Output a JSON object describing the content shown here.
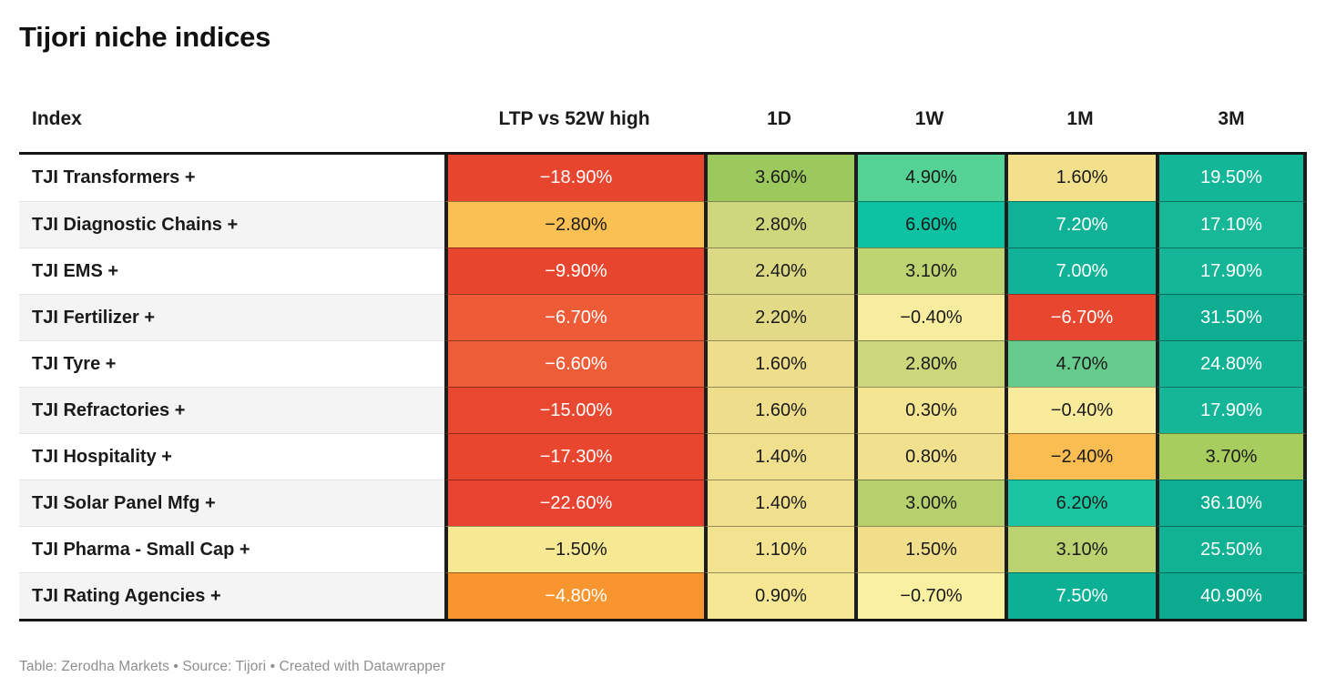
{
  "title": "Tijori niche indices",
  "header": {
    "columns": [
      "Index",
      "LTP vs 52W high",
      "1D",
      "1W",
      "1M",
      "3M"
    ]
  },
  "table": {
    "rows": [
      {
        "name": "TJI Transformers +",
        "cells": [
          {
            "text": "−18.90%",
            "bg": "#e8452f",
            "fg": "#ffffff"
          },
          {
            "text": "3.60%",
            "bg": "#9cc95e",
            "fg": "#1a1a1a"
          },
          {
            "text": "4.90%",
            "bg": "#55d295",
            "fg": "#1a1a1a"
          },
          {
            "text": "1.60%",
            "bg": "#f2e08c",
            "fg": "#1a1a1a"
          },
          {
            "text": "19.50%",
            "bg": "#14b698",
            "fg": "#ffffff"
          }
        ]
      },
      {
        "name": "TJI Diagnostic Chains +",
        "cells": [
          {
            "text": "−2.80%",
            "bg": "#fbc053",
            "fg": "#1a1a1a"
          },
          {
            "text": "2.80%",
            "bg": "#cfd77d",
            "fg": "#1a1a1a"
          },
          {
            "text": "6.60%",
            "bg": "#0cc2a2",
            "fg": "#1a1a1a"
          },
          {
            "text": "7.20%",
            "bg": "#0fb296",
            "fg": "#ffffff"
          },
          {
            "text": "17.10%",
            "bg": "#17b898",
            "fg": "#ffffff"
          }
        ]
      },
      {
        "name": "TJI EMS +",
        "cells": [
          {
            "text": "−9.90%",
            "bg": "#e8452f",
            "fg": "#ffffff"
          },
          {
            "text": "2.40%",
            "bg": "#dcd984",
            "fg": "#1a1a1a"
          },
          {
            "text": "3.10%",
            "bg": "#bed472",
            "fg": "#1a1a1a"
          },
          {
            "text": "7.00%",
            "bg": "#10b397",
            "fg": "#ffffff"
          },
          {
            "text": "17.90%",
            "bg": "#15b697",
            "fg": "#ffffff"
          }
        ]
      },
      {
        "name": "TJI Fertilizer +",
        "cells": [
          {
            "text": "−6.70%",
            "bg": "#ed5b37",
            "fg": "#ffffff"
          },
          {
            "text": "2.20%",
            "bg": "#e2da87",
            "fg": "#1a1a1a"
          },
          {
            "text": "−0.40%",
            "bg": "#f8ed9e",
            "fg": "#1a1a1a"
          },
          {
            "text": "−6.70%",
            "bg": "#e8472f",
            "fg": "#ffffff"
          },
          {
            "text": "31.50%",
            "bg": "#0fae92",
            "fg": "#ffffff"
          }
        ]
      },
      {
        "name": "TJI Tyre +",
        "cells": [
          {
            "text": "−6.60%",
            "bg": "#ed5d38",
            "fg": "#ffffff"
          },
          {
            "text": "1.60%",
            "bg": "#eedd8b",
            "fg": "#1a1a1a"
          },
          {
            "text": "2.80%",
            "bg": "#cbd77b",
            "fg": "#1a1a1a"
          },
          {
            "text": "4.70%",
            "bg": "#66cb8d",
            "fg": "#1a1a1a"
          },
          {
            "text": "24.80%",
            "bg": "#12b295",
            "fg": "#ffffff"
          }
        ]
      },
      {
        "name": "TJI Refractories +",
        "cells": [
          {
            "text": "−15.00%",
            "bg": "#e8482f",
            "fg": "#ffffff"
          },
          {
            "text": "1.60%",
            "bg": "#eedd8b",
            "fg": "#1a1a1a"
          },
          {
            "text": "0.30%",
            "bg": "#f3e591",
            "fg": "#1a1a1a"
          },
          {
            "text": "−0.40%",
            "bg": "#f8ec9c",
            "fg": "#1a1a1a"
          },
          {
            "text": "17.90%",
            "bg": "#15b697",
            "fg": "#ffffff"
          }
        ]
      },
      {
        "name": "TJI Hospitality +",
        "cells": [
          {
            "text": "−17.30%",
            "bg": "#e8462f",
            "fg": "#ffffff"
          },
          {
            "text": "1.40%",
            "bg": "#f0df8d",
            "fg": "#1a1a1a"
          },
          {
            "text": "0.80%",
            "bg": "#f1e18e",
            "fg": "#1a1a1a"
          },
          {
            "text": "−2.40%",
            "bg": "#fabd52",
            "fg": "#1a1a1a"
          },
          {
            "text": "3.70%",
            "bg": "#a8cd5f",
            "fg": "#1a1a1a"
          }
        ]
      },
      {
        "name": "TJI Solar Panel Mfg +",
        "cells": [
          {
            "text": "−22.60%",
            "bg": "#e84330",
            "fg": "#ffffff"
          },
          {
            "text": "1.40%",
            "bg": "#f0df8d",
            "fg": "#1a1a1a"
          },
          {
            "text": "3.00%",
            "bg": "#b6d06e",
            "fg": "#1a1a1a"
          },
          {
            "text": "6.20%",
            "bg": "#1cc5a1",
            "fg": "#1a1a1a"
          },
          {
            "text": "36.10%",
            "bg": "#0dae91",
            "fg": "#ffffff"
          }
        ]
      },
      {
        "name": "TJI Pharma - Small Cap +",
        "cells": [
          {
            "text": "−1.50%",
            "bg": "#f7e893",
            "fg": "#1a1a1a"
          },
          {
            "text": "1.10%",
            "bg": "#f3e290",
            "fg": "#1a1a1a"
          },
          {
            "text": "1.50%",
            "bg": "#f0de8b",
            "fg": "#1a1a1a"
          },
          {
            "text": "3.10%",
            "bg": "#bbd270",
            "fg": "#1a1a1a"
          },
          {
            "text": "25.50%",
            "bg": "#11b194",
            "fg": "#ffffff"
          }
        ]
      },
      {
        "name": "TJI Rating Agencies +",
        "cells": [
          {
            "text": "−4.80%",
            "bg": "#f8952f",
            "fg": "#ffffff"
          },
          {
            "text": "0.90%",
            "bg": "#f5e794",
            "fg": "#1a1a1a"
          },
          {
            "text": "−0.70%",
            "bg": "#f9f0a2",
            "fg": "#1a1a1a"
          },
          {
            "text": "7.50%",
            "bg": "#0cb195",
            "fg": "#ffffff"
          },
          {
            "text": "40.90%",
            "bg": "#0cab8f",
            "fg": "#ffffff"
          }
        ]
      }
    ]
  },
  "footer": "Table: Zerodha Markets • Source: Tijori • Created with Datawrapper",
  "chart_data": {
    "type": "heatmap",
    "title": "Tijori niche indices",
    "columns": [
      "Index",
      "LTP vs 52W high",
      "1D",
      "1W",
      "1M",
      "3M"
    ],
    "units": "percent",
    "color_scale": "red-yellow-green diverging",
    "rows": [
      {
        "index": "TJI Transformers +",
        "ltp_vs_52w_high": -18.9,
        "d1": 3.6,
        "w1": 4.9,
        "m1": 1.6,
        "m3": 19.5
      },
      {
        "index": "TJI Diagnostic Chains +",
        "ltp_vs_52w_high": -2.8,
        "d1": 2.8,
        "w1": 6.6,
        "m1": 7.2,
        "m3": 17.1
      },
      {
        "index": "TJI EMS +",
        "ltp_vs_52w_high": -9.9,
        "d1": 2.4,
        "w1": 3.1,
        "m1": 7.0,
        "m3": 17.9
      },
      {
        "index": "TJI Fertilizer +",
        "ltp_vs_52w_high": -6.7,
        "d1": 2.2,
        "w1": -0.4,
        "m1": -6.7,
        "m3": 31.5
      },
      {
        "index": "TJI Tyre +",
        "ltp_vs_52w_high": -6.6,
        "d1": 1.6,
        "w1": 2.8,
        "m1": 4.7,
        "m3": 24.8
      },
      {
        "index": "TJI Refractories +",
        "ltp_vs_52w_high": -15.0,
        "d1": 1.6,
        "w1": 0.3,
        "m1": -0.4,
        "m3": 17.9
      },
      {
        "index": "TJI Hospitality +",
        "ltp_vs_52w_high": -17.3,
        "d1": 1.4,
        "w1": 0.8,
        "m1": -2.4,
        "m3": 3.7
      },
      {
        "index": "TJI Solar Panel Mfg +",
        "ltp_vs_52w_high": -22.6,
        "d1": 1.4,
        "w1": 3.0,
        "m1": 6.2,
        "m3": 36.1
      },
      {
        "index": "TJI Pharma - Small Cap +",
        "ltp_vs_52w_high": -1.5,
        "d1": 1.1,
        "w1": 1.5,
        "m1": 3.1,
        "m3": 25.5
      },
      {
        "index": "TJI Rating Agencies +",
        "ltp_vs_52w_high": -4.8,
        "d1": 0.9,
        "w1": -0.7,
        "m1": 7.5,
        "m3": 40.9
      }
    ]
  }
}
